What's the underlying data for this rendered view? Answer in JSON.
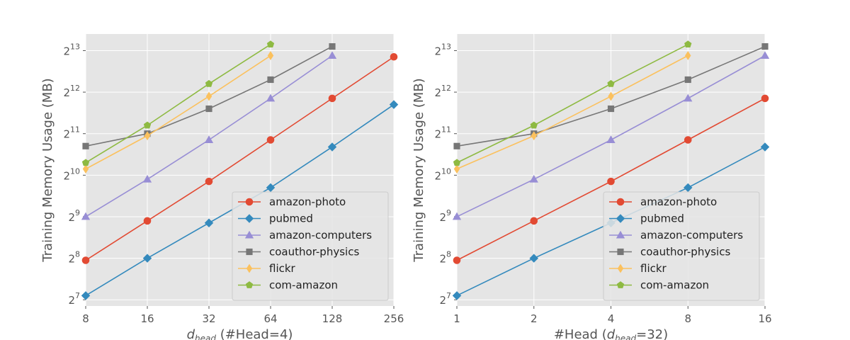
{
  "chart_data": [
    {
      "type": "line",
      "xlabel_main": "d",
      "xlabel_sub": "head",
      "xlabel_rest": " (#Head=4)",
      "ylabel": "Training Memory Usage (MB)",
      "xscale": "log2",
      "yscale": "log2",
      "x_ticks": [
        "8",
        "16",
        "32",
        "64",
        "128",
        "256"
      ],
      "y_ticks": [
        {
          "base": "2",
          "exp": "7"
        },
        {
          "base": "2",
          "exp": "8"
        },
        {
          "base": "2",
          "exp": "9"
        },
        {
          "base": "2",
          "exp": "10"
        },
        {
          "base": "2",
          "exp": "11"
        },
        {
          "base": "2",
          "exp": "12"
        },
        {
          "base": "2",
          "exp": "13"
        }
      ],
      "xlim": [
        8,
        256
      ],
      "ylim_log2": [
        6.85,
        13.4
      ],
      "grid": true,
      "legend_position": "lower-right",
      "series": [
        {
          "name": "amazon-photo",
          "color": "#E24A33",
          "marker": "circle",
          "x": [
            8,
            16,
            32,
            64,
            128,
            256
          ],
          "y_log2": [
            7.95,
            8.9,
            9.85,
            10.85,
            11.85,
            12.85
          ]
        },
        {
          "name": "pubmed",
          "color": "#348ABD",
          "marker": "diamond",
          "x": [
            8,
            16,
            32,
            64,
            128,
            256
          ],
          "y_log2": [
            7.1,
            8.0,
            8.85,
            9.7,
            10.68,
            11.7
          ]
        },
        {
          "name": "amazon-computers",
          "color": "#988ED5",
          "marker": "triangle",
          "x": [
            8,
            16,
            32,
            64,
            128
          ],
          "y_log2": [
            9.0,
            9.9,
            10.85,
            11.85,
            12.88
          ]
        },
        {
          "name": "coauthor-physics",
          "color": "#777777",
          "marker": "square",
          "x": [
            8,
            16,
            32,
            64,
            128
          ],
          "y_log2": [
            10.7,
            11.0,
            11.6,
            12.3,
            13.1
          ]
        },
        {
          "name": "flickr",
          "color": "#FBC15E",
          "marker": "thin_diamond",
          "x": [
            8,
            16,
            32,
            64
          ],
          "y_log2": [
            10.15,
            10.95,
            11.9,
            12.88
          ]
        },
        {
          "name": "com-amazon",
          "color": "#8EBA42",
          "marker": "pentagon",
          "x": [
            8,
            16,
            32,
            64
          ],
          "y_log2": [
            10.3,
            11.2,
            12.2,
            13.15
          ]
        }
      ]
    },
    {
      "type": "line",
      "xlabel_pre": "#Head (",
      "xlabel_main": "d",
      "xlabel_sub": "head",
      "xlabel_rest": "=32)",
      "ylabel": "Training Memory Usage (MB)",
      "xscale": "log2",
      "yscale": "log2",
      "x_ticks": [
        "1",
        "2",
        "4",
        "8",
        "16"
      ],
      "y_ticks": [
        {
          "base": "2",
          "exp": "7"
        },
        {
          "base": "2",
          "exp": "8"
        },
        {
          "base": "2",
          "exp": "9"
        },
        {
          "base": "2",
          "exp": "10"
        },
        {
          "base": "2",
          "exp": "11"
        },
        {
          "base": "2",
          "exp": "12"
        },
        {
          "base": "2",
          "exp": "13"
        }
      ],
      "xlim": [
        1,
        16
      ],
      "ylim_log2": [
        6.85,
        13.4
      ],
      "grid": true,
      "legend_position": "lower-right",
      "series": [
        {
          "name": "amazon-photo",
          "color": "#E24A33",
          "marker": "circle",
          "x": [
            1,
            2,
            4,
            8,
            16
          ],
          "y_log2": [
            7.95,
            8.9,
            9.85,
            10.85,
            11.85
          ]
        },
        {
          "name": "pubmed",
          "color": "#348ABD",
          "marker": "diamond",
          "x": [
            1,
            2,
            4,
            8,
            16
          ],
          "y_log2": [
            7.1,
            8.0,
            8.85,
            9.7,
            10.68
          ]
        },
        {
          "name": "amazon-computers",
          "color": "#988ED5",
          "marker": "triangle",
          "x": [
            1,
            2,
            4,
            8,
            16
          ],
          "y_log2": [
            9.0,
            9.9,
            10.85,
            11.85,
            12.88
          ]
        },
        {
          "name": "coauthor-physics",
          "color": "#777777",
          "marker": "square",
          "x": [
            1,
            2,
            4,
            8,
            16
          ],
          "y_log2": [
            10.7,
            11.0,
            11.6,
            12.3,
            13.1
          ]
        },
        {
          "name": "flickr",
          "color": "#FBC15E",
          "marker": "thin_diamond",
          "x": [
            1,
            2,
            4,
            8
          ],
          "y_log2": [
            10.15,
            10.95,
            11.9,
            12.88
          ]
        },
        {
          "name": "com-amazon",
          "color": "#8EBA42",
          "marker": "pentagon",
          "x": [
            1,
            2,
            4,
            8
          ],
          "y_log2": [
            10.3,
            11.2,
            12.2,
            13.15
          ]
        }
      ]
    }
  ]
}
